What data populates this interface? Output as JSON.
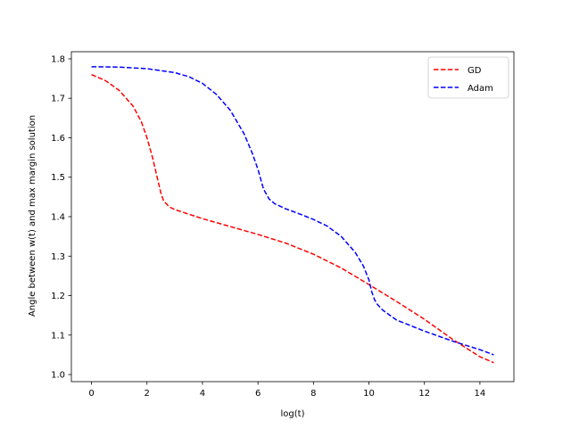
{
  "chart_data": {
    "type": "line",
    "title": "",
    "xlabel": "log(t)",
    "ylabel": "Angle between w(t) and max margin solution",
    "xlim": [
      -0.725,
      15.225
    ],
    "ylim": [
      0.982,
      1.818
    ],
    "xticks": [
      0,
      2,
      4,
      6,
      8,
      10,
      12,
      14
    ],
    "yticks": [
      1.0,
      1.1,
      1.2,
      1.3,
      1.4,
      1.5,
      1.6,
      1.7,
      1.8
    ],
    "xtick_labels": [
      "0",
      "2",
      "4",
      "6",
      "8",
      "10",
      "12",
      "14"
    ],
    "ytick_labels": [
      "1.0",
      "1.1",
      "1.2",
      "1.3",
      "1.4",
      "1.5",
      "1.6",
      "1.7",
      "1.8"
    ],
    "grid": false,
    "legend_position": "top-right",
    "series": [
      {
        "name": "GD",
        "color": "#ff0000",
        "style": "dashed",
        "x": [
          0,
          0.5,
          1.0,
          1.5,
          1.8,
          2.0,
          2.2,
          2.4,
          2.5,
          2.6,
          2.8,
          3.0,
          4.0,
          5.0,
          6.0,
          7.0,
          8.0,
          9.0,
          10.0,
          11.0,
          12.0,
          13.0,
          14.0,
          14.5
        ],
        "y": [
          1.76,
          1.745,
          1.72,
          1.68,
          1.64,
          1.6,
          1.55,
          1.49,
          1.46,
          1.44,
          1.425,
          1.418,
          1.395,
          1.375,
          1.355,
          1.333,
          1.305,
          1.27,
          1.228,
          1.185,
          1.14,
          1.09,
          1.045,
          1.03
        ]
      },
      {
        "name": "Adam",
        "color": "#0000ff",
        "style": "dashed",
        "x": [
          0,
          1.0,
          2.0,
          3.0,
          3.5,
          4.0,
          4.5,
          5.0,
          5.5,
          5.8,
          6.0,
          6.2,
          6.4,
          6.6,
          7.0,
          7.5,
          8.0,
          8.5,
          9.0,
          9.5,
          9.8,
          10.0,
          10.1,
          10.2,
          10.3,
          10.5,
          11.0,
          12.0,
          13.0,
          14.0,
          14.5
        ],
        "y": [
          1.78,
          1.779,
          1.775,
          1.765,
          1.755,
          1.738,
          1.71,
          1.67,
          1.61,
          1.56,
          1.52,
          1.47,
          1.445,
          1.433,
          1.42,
          1.407,
          1.393,
          1.376,
          1.35,
          1.31,
          1.275,
          1.24,
          1.21,
          1.19,
          1.178,
          1.163,
          1.138,
          1.11,
          1.085,
          1.063,
          1.05
        ]
      }
    ]
  }
}
